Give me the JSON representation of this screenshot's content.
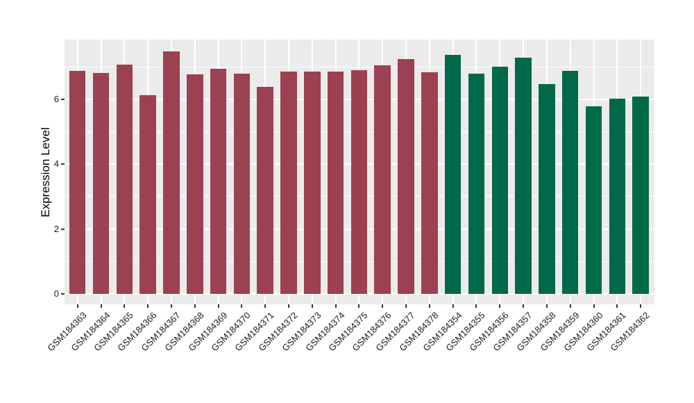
{
  "chart_data": {
    "type": "bar",
    "title": "",
    "xlabel": "",
    "ylabel": "Expression Level",
    "ylim": [
      0,
      7.84
    ],
    "yticks": [
      0,
      2,
      4,
      6
    ],
    "yticks_minor": [
      1,
      3,
      5,
      7
    ],
    "grid": "on",
    "legend": "none",
    "categories": [
      "GSM184363",
      "GSM184364",
      "GSM184365",
      "GSM184366",
      "GSM184367",
      "GSM184368",
      "GSM184369",
      "GSM184370",
      "GSM184371",
      "GSM184372",
      "GSM184373",
      "GSM184374",
      "GSM184375",
      "GSM184376",
      "GSM184377",
      "GSM184378",
      "GSM184354",
      "GSM184355",
      "GSM184356",
      "GSM184357",
      "GSM184358",
      "GSM184359",
      "GSM184360",
      "GSM184361",
      "GSM184362"
    ],
    "values": [
      6.87,
      6.82,
      7.07,
      6.12,
      7.48,
      6.77,
      6.94,
      6.78,
      6.39,
      6.86,
      6.85,
      6.85,
      6.89,
      7.05,
      7.23,
      6.84,
      7.36,
      6.78,
      7.01,
      7.28,
      6.47,
      6.88,
      5.78,
      6.02,
      6.08
    ],
    "bar_groups": [
      "red",
      "red",
      "red",
      "red",
      "red",
      "red",
      "red",
      "red",
      "red",
      "red",
      "red",
      "red",
      "red",
      "red",
      "red",
      "red",
      "green",
      "green",
      "green",
      "green",
      "green",
      "green",
      "green",
      "green",
      "green"
    ],
    "group_colors": {
      "red": "#9C4151",
      "green": "#00694A"
    },
    "colors": {
      "panel_bg": "#EBEBEB",
      "grid": "#FFFFFF",
      "tick": "#333333",
      "label_text": "#1A1A1A",
      "page_bg": "#FFFFFF"
    }
  }
}
